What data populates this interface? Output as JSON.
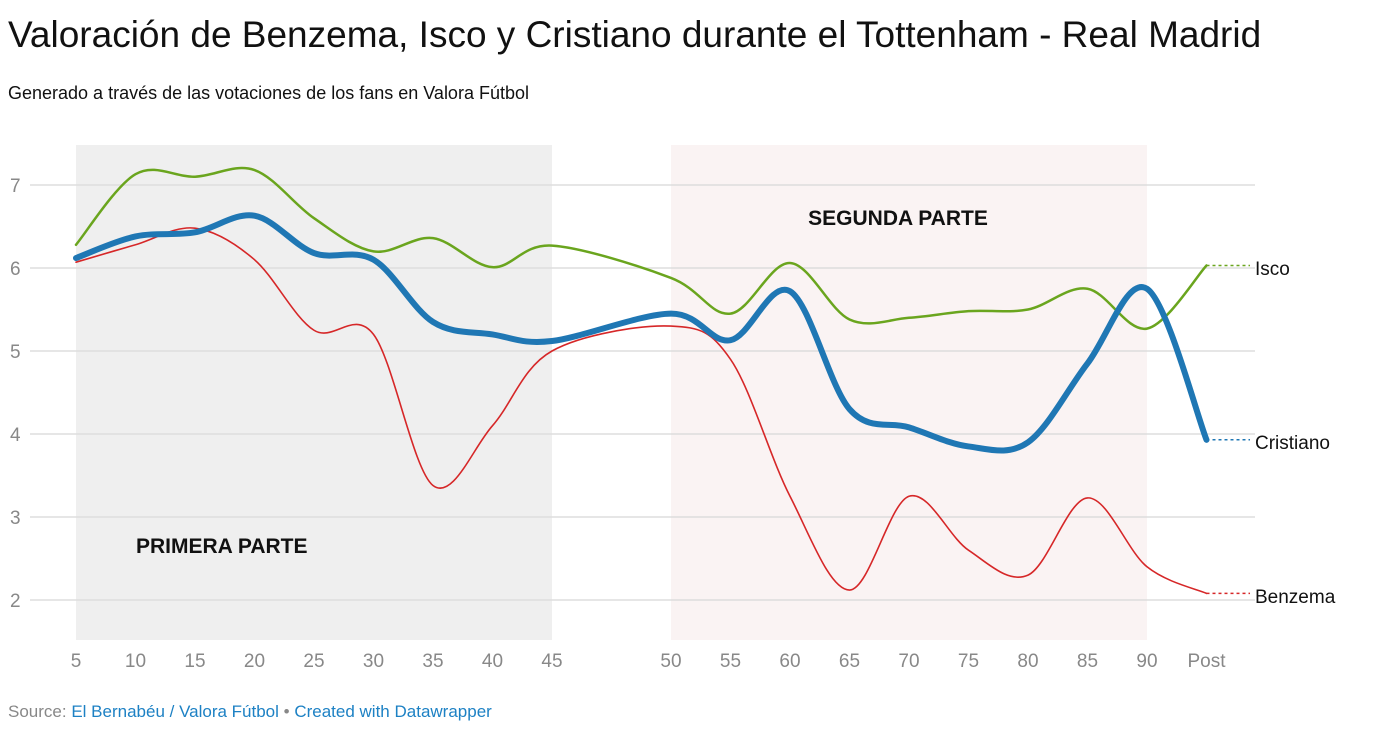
{
  "title": "Valoración de Benzema, Isco y Cristiano durante el Tottenham - Real Madrid",
  "subtitle": "Generado a través de las votaciones de los fans en Valora Fútbol",
  "source": {
    "label": "Source:",
    "link": "El Bernabéu / Valora Fútbol",
    "sep": " • ",
    "credit": "Created with Datawrapper"
  },
  "chart_data": {
    "type": "line",
    "categories": [
      "5",
      "10",
      "15",
      "20",
      "25",
      "30",
      "35",
      "40",
      "45",
      "50",
      "55",
      "60",
      "65",
      "70",
      "75",
      "80",
      "85",
      "90",
      "Post"
    ],
    "ylim": [
      1.5,
      7.5
    ],
    "yticks": [
      2,
      3,
      4,
      5,
      6,
      7
    ],
    "grid": true,
    "legend": "inline-right",
    "regions": [
      {
        "label": "PRIMERA PARTE",
        "from": "5",
        "to": "45",
        "color": "#efefef"
      },
      {
        "label": "SEGUNDA PARTE",
        "from": "50",
        "to": "90",
        "color": "#faf3f3"
      }
    ],
    "series": [
      {
        "name": "Isco",
        "color": "#6aa51e",
        "values": [
          6.28,
          7.13,
          7.1,
          7.18,
          6.6,
          6.2,
          6.36,
          6.01,
          6.27,
          5.88,
          5.45,
          6.06,
          5.38,
          5.4,
          5.48,
          5.5,
          5.75,
          5.27,
          6.03
        ]
      },
      {
        "name": "Cristiano",
        "color": "#1f77b4",
        "values": [
          6.12,
          6.38,
          6.43,
          6.63,
          6.18,
          6.1,
          5.35,
          5.2,
          5.12,
          5.45,
          5.13,
          5.72,
          4.3,
          4.08,
          3.85,
          3.9,
          4.85,
          5.75,
          3.93
        ]
      },
      {
        "name": "Benzema",
        "color": "#d62728",
        "values": [
          6.07,
          6.28,
          6.48,
          6.1,
          5.25,
          5.2,
          3.38,
          4.1,
          5.0,
          5.3,
          4.9,
          3.25,
          2.12,
          3.25,
          2.6,
          2.3,
          3.23,
          2.4,
          2.08
        ]
      }
    ]
  }
}
